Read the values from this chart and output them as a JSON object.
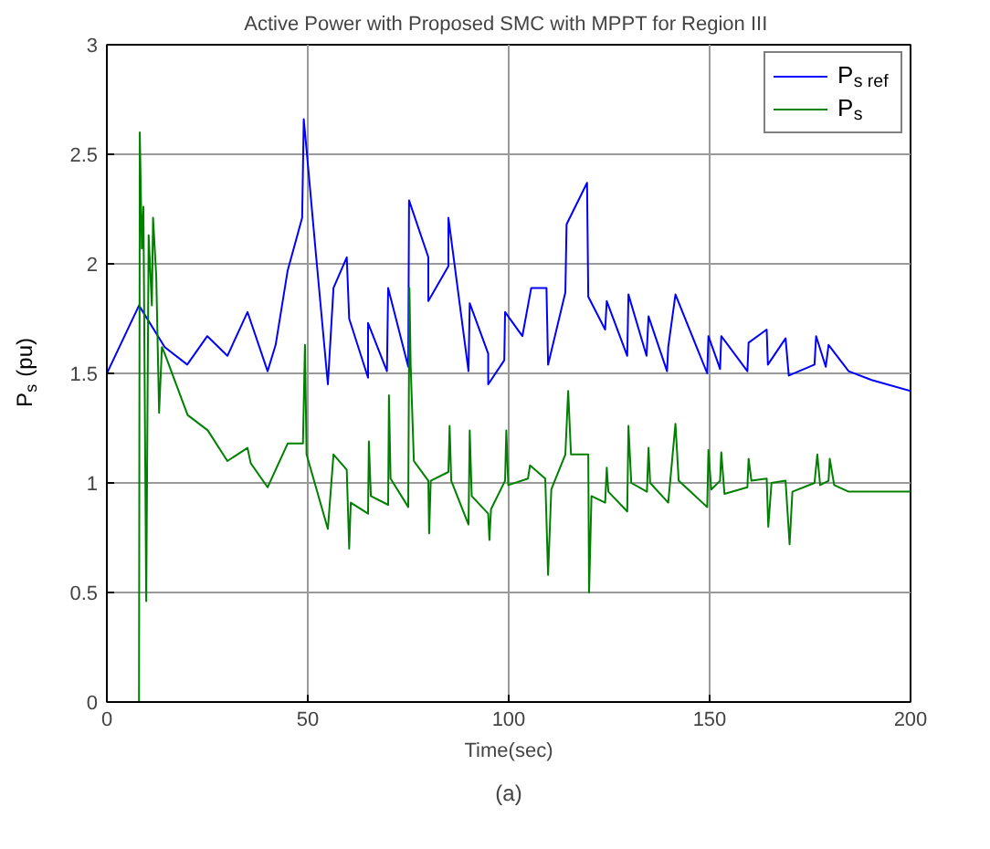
{
  "chart_data": {
    "type": "line",
    "title": "Active Power with Proposed SMC with MPPT for  Region III",
    "xlabel": "Time(sec)",
    "ylabel": "P$_{s}$ (pu)",
    "annotations": [
      "(a)"
    ],
    "xlim": [
      0,
      200
    ],
    "xticks": [
      0,
      50,
      100,
      150,
      200
    ],
    "ylim": [
      0,
      3
    ],
    "yticks": [
      0,
      0.5,
      1,
      1.5,
      2,
      2.5,
      3
    ],
    "grid": true,
    "legend": "top right",
    "line_style": "solid",
    "series": [
      {
        "name": "P$_{s ref}$",
        "color": "#0000ff",
        "x": [
          0,
          8,
          14.4,
          20,
          25,
          30,
          35,
          40,
          42,
          45,
          48.6,
          49,
          49.7,
          52,
          55,
          56.4,
          59.7,
          60.3,
          65,
          65,
          69.7,
          70,
          75,
          75.2,
          80,
          80,
          85,
          85,
          90,
          90.3,
          94.9,
          94.9,
          98.9,
          99.1,
          103.4,
          105.6,
          109.4,
          109.8,
          114.1,
          114.4,
          119.5,
          119.8,
          124,
          124.4,
          129.5,
          129.8,
          134.3,
          134.8,
          139.4,
          139.7,
          141.5,
          149.4,
          149.7,
          152.6,
          152.9,
          159.4,
          159.7,
          164.2,
          164.5,
          168.9,
          169.7,
          176.1,
          176.5,
          178.9,
          179.6,
          184.6,
          190.3,
          200
        ],
        "values": [
          1.5,
          1.81,
          1.62,
          1.54,
          1.67,
          1.58,
          1.78,
          1.51,
          1.63,
          1.97,
          2.21,
          2.66,
          2.52,
          2.05,
          1.45,
          1.89,
          2.03,
          1.75,
          1.48,
          1.73,
          1.51,
          1.89,
          1.53,
          2.29,
          2.03,
          1.83,
          1.99,
          2.21,
          1.51,
          1.82,
          1.59,
          1.45,
          1.56,
          1.78,
          1.67,
          1.89,
          1.89,
          1.54,
          1.87,
          2.18,
          2.37,
          1.85,
          1.7,
          1.83,
          1.58,
          1.86,
          1.58,
          1.76,
          1.51,
          1.62,
          1.86,
          1.5,
          1.67,
          1.52,
          1.67,
          1.51,
          1.64,
          1.7,
          1.54,
          1.66,
          1.49,
          1.54,
          1.67,
          1.53,
          1.63,
          1.51,
          1.47,
          1.42
        ]
      },
      {
        "name": "P$_{s}$",
        "color": "#008000",
        "x": [
          0,
          8,
          8.2,
          8.7,
          9.1,
          9.8,
          10.4,
          11.2,
          11.5,
          12.3,
          13,
          13.7,
          14.4,
          20.1,
          25.1,
          30,
          35,
          35.8,
          40,
          45,
          48.8,
          49.3,
          49.7,
          55,
          56.4,
          59.7,
          60.3,
          60.7,
          65,
          65.2,
          65.7,
          70,
          70.2,
          70.6,
          75,
          75.3,
          75.6,
          76.4,
          80,
          80.2,
          80.6,
          85,
          85.3,
          85.7,
          90,
          90.3,
          90.8,
          94.9,
          95.2,
          95.6,
          99.1,
          99.4,
          99.9,
          104.8,
          105.3,
          109.1,
          109.8,
          110.6,
          114.1,
          114.8,
          115.5,
          119.8,
          120,
          120.6,
          124,
          124.4,
          124.8,
          129.5,
          129.8,
          130.5,
          134.4,
          134.8,
          135.2,
          139.7,
          141.5,
          142.3,
          149.4,
          149.7,
          150.4,
          152.6,
          152.9,
          153.7,
          159.4,
          159.7,
          160.4,
          164.2,
          164.6,
          165.4,
          168.9,
          169.9,
          170.6,
          176.1,
          176.8,
          177.5,
          179.6,
          179.9,
          181,
          184.6,
          200
        ],
        "values": [
          0,
          0,
          2.6,
          2.07,
          2.26,
          0.46,
          2.13,
          1.81,
          2.21,
          1.94,
          1.32,
          1.62,
          1.59,
          1.31,
          1.24,
          1.1,
          1.16,
          1.09,
          0.98,
          1.18,
          1.18,
          1.63,
          1.13,
          0.79,
          1.13,
          1.06,
          0.7,
          0.91,
          0.86,
          1.19,
          0.94,
          0.9,
          1.4,
          1.02,
          0.89,
          1.89,
          1.54,
          1.1,
          1.01,
          0.77,
          1.01,
          1.05,
          1.26,
          1.01,
          0.81,
          1.24,
          0.94,
          0.86,
          0.74,
          0.88,
          1.01,
          1.24,
          0.99,
          1.02,
          1.08,
          1.02,
          0.58,
          0.97,
          1.13,
          1.42,
          1.13,
          1.13,
          0.5,
          0.94,
          0.91,
          1.07,
          0.96,
          0.87,
          1.26,
          1.0,
          0.96,
          1.16,
          1.0,
          0.91,
          1.27,
          1.01,
          0.89,
          1.15,
          0.97,
          1.01,
          1.14,
          0.95,
          0.98,
          1.11,
          1.01,
          1.02,
          0.8,
          1.0,
          1.01,
          0.72,
          0.96,
          1.0,
          1.13,
          0.99,
          1.01,
          1.11,
          0.99,
          0.96,
          0.96
        ]
      }
    ]
  }
}
